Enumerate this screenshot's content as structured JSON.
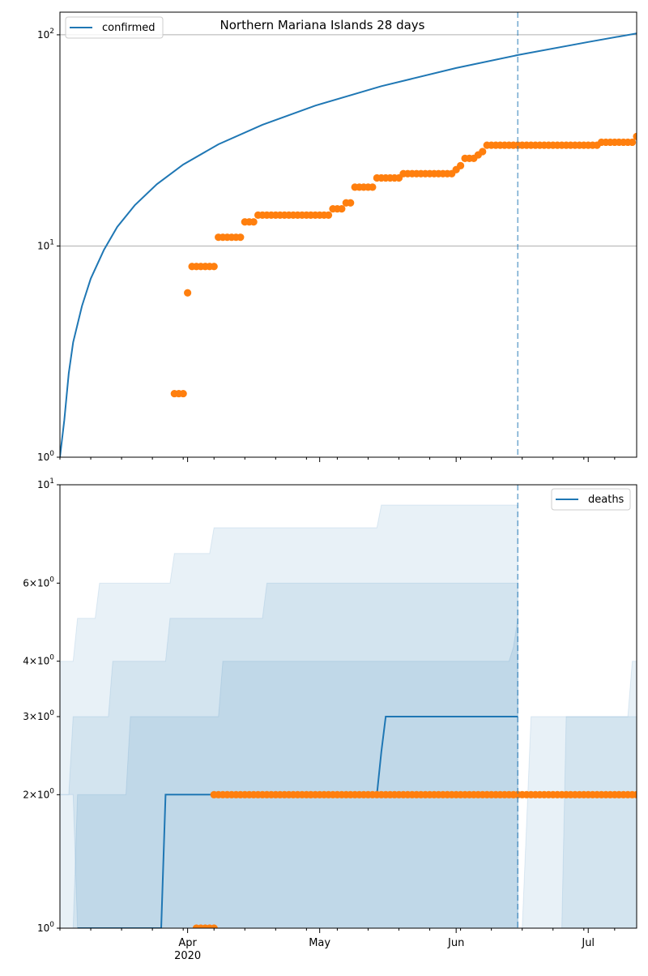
{
  "chart_data": [
    {
      "type": "line",
      "title": "Northern Mariana Islands 28 days",
      "yscale": "log",
      "ylim": [
        1,
        128
      ],
      "xlim": [
        "2020-03-03",
        "2020-07-12"
      ],
      "grid": true,
      "legend_position": "top-left",
      "y_ticks": [
        {
          "value": 1,
          "base": "10",
          "exp": "0"
        },
        {
          "value": 10,
          "base": "10",
          "exp": "1"
        },
        {
          "value": 100,
          "base": "10",
          "exp": "2"
        }
      ],
      "series": [
        {
          "name": "confirmed",
          "style": "line",
          "color": "#1f77b4",
          "x": [
            "2020-03-03",
            "2020-03-04",
            "2020-03-05",
            "2020-03-06",
            "2020-03-08",
            "2020-03-10",
            "2020-03-13",
            "2020-03-16",
            "2020-03-20",
            "2020-03-25",
            "2020-03-31",
            "2020-04-08",
            "2020-04-18",
            "2020-04-30",
            "2020-05-15",
            "2020-06-01",
            "2020-06-15",
            "2020-07-01",
            "2020-07-12"
          ],
          "y": [
            1.0,
            1.5,
            2.5,
            3.5,
            5.2,
            7.0,
            9.6,
            12.3,
            15.6,
            19.6,
            24.3,
            30.3,
            37.5,
            46.2,
            57.1,
            69.6,
            80.2,
            92.5,
            101.5
          ]
        },
        {
          "name": "",
          "style": "markers",
          "color": "#ff7f0e",
          "x": [
            "2020-03-29",
            "2020-03-30",
            "2020-03-31",
            "2020-04-01",
            "2020-04-02",
            "2020-04-03",
            "2020-04-04",
            "2020-04-05",
            "2020-04-06",
            "2020-04-07",
            "2020-04-08",
            "2020-04-09",
            "2020-04-10",
            "2020-04-11",
            "2020-04-12",
            "2020-04-13",
            "2020-04-14",
            "2020-04-15",
            "2020-04-16",
            "2020-04-17",
            "2020-04-18",
            "2020-04-19",
            "2020-04-20",
            "2020-04-21",
            "2020-04-22",
            "2020-04-23",
            "2020-04-24",
            "2020-04-25",
            "2020-04-26",
            "2020-04-27",
            "2020-04-28",
            "2020-04-29",
            "2020-04-30",
            "2020-05-01",
            "2020-05-02",
            "2020-05-03",
            "2020-05-04",
            "2020-05-05",
            "2020-05-06",
            "2020-05-07",
            "2020-05-08",
            "2020-05-09",
            "2020-05-10",
            "2020-05-11",
            "2020-05-12",
            "2020-05-13",
            "2020-05-14",
            "2020-05-15",
            "2020-05-16",
            "2020-05-17",
            "2020-05-18",
            "2020-05-19",
            "2020-05-20",
            "2020-05-21",
            "2020-05-22",
            "2020-05-23",
            "2020-05-24",
            "2020-05-25",
            "2020-05-26",
            "2020-05-27",
            "2020-05-28",
            "2020-05-29",
            "2020-05-30",
            "2020-05-31",
            "2020-06-01",
            "2020-06-02",
            "2020-06-03",
            "2020-06-04",
            "2020-06-05",
            "2020-06-06",
            "2020-06-07",
            "2020-06-08",
            "2020-06-09",
            "2020-06-10",
            "2020-06-11",
            "2020-06-12",
            "2020-06-13",
            "2020-06-14",
            "2020-06-15",
            "2020-06-16",
            "2020-06-17",
            "2020-06-18",
            "2020-06-19",
            "2020-06-20",
            "2020-06-21",
            "2020-06-22",
            "2020-06-23",
            "2020-06-24",
            "2020-06-25",
            "2020-06-26",
            "2020-06-27",
            "2020-06-28",
            "2020-06-29",
            "2020-06-30",
            "2020-07-01",
            "2020-07-02",
            "2020-07-03",
            "2020-07-04",
            "2020-07-05",
            "2020-07-06",
            "2020-07-07",
            "2020-07-08",
            "2020-07-09",
            "2020-07-10",
            "2020-07-11",
            "2020-07-12"
          ],
          "y": [
            2,
            2,
            2,
            6,
            8,
            8,
            8,
            8,
            8,
            8,
            11,
            11,
            11,
            11,
            11,
            11,
            13,
            13,
            13,
            14,
            14,
            14,
            14,
            14,
            14,
            14,
            14,
            14,
            14,
            14,
            14,
            14,
            14,
            14,
            14,
            14,
            15,
            15,
            15,
            16,
            16,
            19,
            19,
            19,
            19,
            19,
            21,
            21,
            21,
            21,
            21,
            21,
            22,
            22,
            22,
            22,
            22,
            22,
            22,
            22,
            22,
            22,
            22,
            22,
            23,
            24,
            26,
            26,
            26,
            27,
            28,
            30,
            30,
            30,
            30,
            30,
            30,
            30,
            30,
            30,
            30,
            30,
            30,
            30,
            30,
            30,
            30,
            30,
            30,
            30,
            30,
            30,
            30,
            30,
            30,
            30,
            30,
            31,
            31,
            31,
            31,
            31,
            31,
            31,
            31,
            33
          ]
        }
      ],
      "forecast_marker": "2020-06-15"
    },
    {
      "type": "area",
      "title": "",
      "yscale": "log",
      "ylim": [
        1,
        10
      ],
      "xlim": [
        "2020-03-03",
        "2020-07-12"
      ],
      "grid": false,
      "legend_position": "top-right",
      "y_ticks": [
        {
          "value": 1,
          "base": "10",
          "exp": "0"
        },
        {
          "value": 2,
          "base": "2×10",
          "exp": "0"
        },
        {
          "value": 3,
          "base": "3×10",
          "exp": "0"
        },
        {
          "value": 4,
          "base": "4×10",
          "exp": "0"
        },
        {
          "value": 6,
          "base": "6×10",
          "exp": "0"
        },
        {
          "value": 10,
          "base": "10",
          "exp": "1"
        }
      ],
      "x_ticks": [
        {
          "date": "2020-04-01",
          "label": "Apr",
          "sublabel": "2020"
        },
        {
          "date": "2020-05-01",
          "label": "May",
          "sublabel": ""
        },
        {
          "date": "2020-06-01",
          "label": "Jun",
          "sublabel": ""
        },
        {
          "date": "2020-07-01",
          "label": "Jul",
          "sublabel": ""
        }
      ],
      "bands": [
        {
          "color": "#1f77b4",
          "opacity": 0.1,
          "x": [
            "2020-03-03",
            "2020-03-06",
            "2020-03-07",
            "2020-03-11",
            "2020-03-12",
            "2020-03-17",
            "2020-03-18",
            "2020-03-28",
            "2020-03-29",
            "2020-04-06",
            "2020-04-07",
            "2020-05-14",
            "2020-05-15",
            "2020-06-15"
          ],
          "upper": [
            4,
            4,
            5,
            5,
            6,
            6,
            6,
            6,
            7,
            7,
            8,
            8,
            9,
            9
          ],
          "lower": [
            2,
            2,
            1,
            1,
            1,
            1,
            1,
            1,
            1,
            1,
            1,
            1,
            1,
            1
          ]
        },
        {
          "color": "#1f77b4",
          "opacity": 0.1,
          "x": [
            "2020-03-03",
            "2020-03-05",
            "2020-03-06",
            "2020-03-14",
            "2020-03-15",
            "2020-03-27",
            "2020-03-28",
            "2020-04-18",
            "2020-04-19",
            "2020-06-14",
            "2020-06-15"
          ],
          "upper": [
            2,
            2,
            3,
            3,
            4,
            4,
            5,
            5,
            6,
            6,
            6
          ],
          "lower": [
            1,
            1,
            1,
            1,
            1,
            1,
            1,
            1,
            1,
            1,
            1
          ]
        },
        {
          "color": "#1f77b4",
          "opacity": 0.1,
          "x": [
            "2020-03-03",
            "2020-03-06",
            "2020-03-07",
            "2020-03-18",
            "2020-03-19",
            "2020-04-08",
            "2020-04-09",
            "2020-06-13",
            "2020-06-14",
            "2020-06-15"
          ],
          "upper": [
            1,
            1,
            2,
            2,
            3,
            3,
            4,
            4,
            4.3,
            5
          ],
          "lower": [
            1,
            1,
            1,
            1,
            1,
            1,
            1,
            1,
            1,
            1
          ]
        },
        {
          "color": "#1f77b4",
          "opacity": 0.1,
          "x": [
            "2020-06-16",
            "2020-06-18",
            "2020-06-19",
            "2020-07-10",
            "2020-07-11",
            "2020-07-12"
          ],
          "upper": [
            1,
            3,
            3,
            3,
            4,
            4
          ],
          "lower": [
            1,
            1,
            1,
            1,
            1,
            1
          ]
        },
        {
          "color": "#1f77b4",
          "opacity": 0.1,
          "x": [
            "2020-06-25",
            "2020-06-26",
            "2020-07-12"
          ],
          "upper": [
            1,
            3,
            3
          ],
          "lower": [
            1,
            1,
            1
          ]
        }
      ],
      "series": [
        {
          "name": "deaths",
          "style": "line",
          "color": "#1f77b4",
          "x": [
            "2020-03-07",
            "2020-03-26",
            "2020-03-27",
            "2020-05-14",
            "2020-05-15",
            "2020-05-16",
            "2020-06-15"
          ],
          "y": [
            1,
            1,
            2,
            2,
            2.5,
            3,
            3
          ]
        },
        {
          "name": "",
          "style": "markers",
          "color": "#ff7f0e",
          "x": [
            "2020-04-03",
            "2020-04-04",
            "2020-04-05",
            "2020-04-06",
            "2020-04-07",
            "2020-04-07",
            "2020-04-08",
            "2020-04-09",
            "2020-04-10",
            "2020-04-11",
            "2020-04-12",
            "2020-04-13",
            "2020-04-14",
            "2020-04-15",
            "2020-04-16",
            "2020-04-17",
            "2020-04-18",
            "2020-04-19",
            "2020-04-20",
            "2020-04-21",
            "2020-04-22",
            "2020-04-23",
            "2020-04-24",
            "2020-04-25",
            "2020-04-26",
            "2020-04-27",
            "2020-04-28",
            "2020-04-29",
            "2020-04-30",
            "2020-05-01",
            "2020-05-02",
            "2020-05-03",
            "2020-05-04",
            "2020-05-05",
            "2020-05-06",
            "2020-05-07",
            "2020-05-08",
            "2020-05-09",
            "2020-05-10",
            "2020-05-11",
            "2020-05-12",
            "2020-05-13",
            "2020-05-14",
            "2020-05-15",
            "2020-05-16",
            "2020-05-17",
            "2020-05-18",
            "2020-05-19",
            "2020-05-20",
            "2020-05-21",
            "2020-05-22",
            "2020-05-23",
            "2020-05-24",
            "2020-05-25",
            "2020-05-26",
            "2020-05-27",
            "2020-05-28",
            "2020-05-29",
            "2020-05-30",
            "2020-05-31",
            "2020-06-01",
            "2020-06-02",
            "2020-06-03",
            "2020-06-04",
            "2020-06-05",
            "2020-06-06",
            "2020-06-07",
            "2020-06-08",
            "2020-06-09",
            "2020-06-10",
            "2020-06-11",
            "2020-06-12",
            "2020-06-13",
            "2020-06-14",
            "2020-06-15",
            "2020-06-16",
            "2020-06-17",
            "2020-06-18",
            "2020-06-19",
            "2020-06-20",
            "2020-06-21",
            "2020-06-22",
            "2020-06-23",
            "2020-06-24",
            "2020-06-25",
            "2020-06-26",
            "2020-06-27",
            "2020-06-28",
            "2020-06-29",
            "2020-06-30",
            "2020-07-01",
            "2020-07-02",
            "2020-07-03",
            "2020-07-04",
            "2020-07-05",
            "2020-07-06",
            "2020-07-07",
            "2020-07-08",
            "2020-07-09",
            "2020-07-10",
            "2020-07-11",
            "2020-07-12"
          ],
          "y": [
            1,
            1,
            1,
            1,
            1,
            2,
            2,
            2,
            2,
            2,
            2,
            2,
            2,
            2,
            2,
            2,
            2,
            2,
            2,
            2,
            2,
            2,
            2,
            2,
            2,
            2,
            2,
            2,
            2,
            2,
            2,
            2,
            2,
            2,
            2,
            2,
            2,
            2,
            2,
            2,
            2,
            2,
            2,
            2,
            2,
            2,
            2,
            2,
            2,
            2,
            2,
            2,
            2,
            2,
            2,
            2,
            2,
            2,
            2,
            2,
            2,
            2,
            2,
            2,
            2,
            2,
            2,
            2,
            2,
            2,
            2,
            2,
            2,
            2,
            2,
            2,
            2,
            2,
            2,
            2,
            2,
            2,
            2,
            2,
            2,
            2,
            2,
            2,
            2,
            2,
            2,
            2,
            2,
            2,
            2,
            2,
            2,
            2,
            2,
            2,
            2,
            2
          ]
        }
      ],
      "forecast_marker": "2020-06-15"
    }
  ]
}
